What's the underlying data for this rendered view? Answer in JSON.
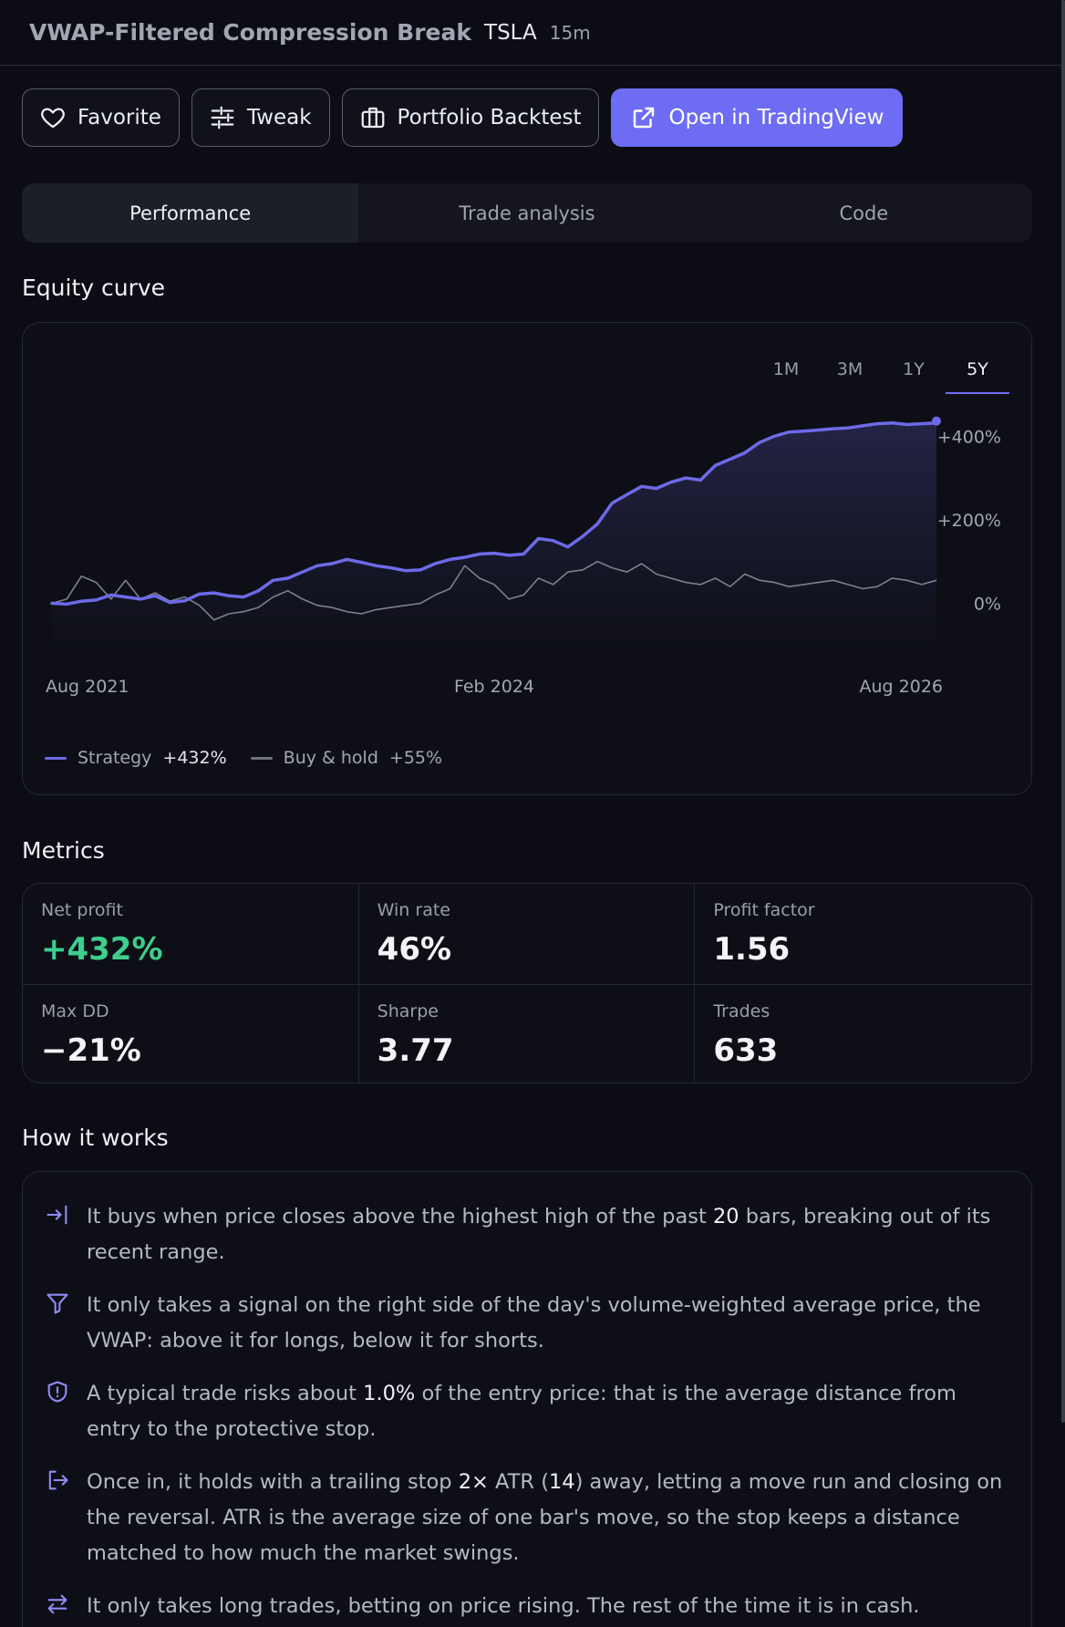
{
  "header": {
    "title": "VWAP-Filtered Compression Break",
    "ticker": "TSLA",
    "timeframe": "15m"
  },
  "actions": {
    "favorite": "Favorite",
    "tweak": "Tweak",
    "portfolio_backtest": "Portfolio Backtest",
    "open_tradingview": "Open in TradingView"
  },
  "tabs": [
    "Performance",
    "Trade analysis",
    "Code"
  ],
  "equity": {
    "section_title": "Equity curve",
    "ranges": [
      "1M",
      "3M",
      "1Y",
      "5Y"
    ],
    "active_range": "5Y",
    "legend": {
      "strategy_label": "Strategy",
      "strategy_value": "+432%",
      "bh_label": "Buy & hold",
      "bh_value": "+55%"
    }
  },
  "chart_data": {
    "type": "line",
    "x_tick_labels": [
      "Aug 2021",
      "Feb 2024",
      "Aug 2026"
    ],
    "y_tick_labels": [
      "+400%",
      "+200%",
      "0%"
    ],
    "ylim": [
      -60,
      440
    ],
    "xlim": [
      0,
      60
    ],
    "grid": false,
    "legend_position": "bottom-left",
    "colors": {
      "strategy": "#6d6ae8",
      "buy_hold": "#7e808c"
    },
    "series": [
      {
        "name": "Strategy",
        "x": [
          0,
          1,
          2,
          3,
          4,
          5,
          6,
          7,
          8,
          9,
          10,
          11,
          12,
          13,
          14,
          15,
          16,
          17,
          18,
          19,
          20,
          21,
          22,
          23,
          24,
          25,
          26,
          27,
          28,
          29,
          30,
          31,
          32,
          33,
          34,
          35,
          36,
          37,
          38,
          39,
          40,
          41,
          42,
          43,
          44,
          45,
          46,
          47,
          48,
          49,
          50,
          51,
          52,
          53,
          54,
          55,
          56,
          57,
          58,
          59,
          60
        ],
        "values": [
          0,
          -2,
          5,
          8,
          20,
          15,
          10,
          18,
          2,
          6,
          22,
          25,
          18,
          15,
          30,
          55,
          60,
          75,
          90,
          95,
          105,
          98,
          90,
          85,
          78,
          80,
          95,
          105,
          110,
          118,
          120,
          115,
          118,
          155,
          150,
          135,
          160,
          190,
          240,
          260,
          280,
          275,
          290,
          300,
          295,
          330,
          345,
          360,
          385,
          400,
          410,
          412,
          415,
          418,
          420,
          425,
          430,
          432,
          428,
          430,
          432
        ]
      },
      {
        "name": "Buy & hold",
        "x": [
          0,
          1,
          2,
          3,
          4,
          5,
          6,
          7,
          8,
          9,
          10,
          11,
          12,
          13,
          14,
          15,
          16,
          17,
          18,
          19,
          20,
          21,
          22,
          23,
          24,
          25,
          26,
          27,
          28,
          29,
          30,
          31,
          32,
          33,
          34,
          35,
          36,
          37,
          38,
          39,
          40,
          41,
          42,
          43,
          44,
          45,
          46,
          47,
          48,
          49,
          50,
          51,
          52,
          53,
          54,
          55,
          56,
          57,
          58,
          59,
          60
        ],
        "values": [
          0,
          10,
          65,
          50,
          10,
          55,
          10,
          25,
          5,
          15,
          -5,
          -40,
          -25,
          -20,
          -10,
          15,
          30,
          10,
          -5,
          -10,
          -20,
          -25,
          -15,
          -10,
          -5,
          0,
          20,
          35,
          90,
          60,
          45,
          10,
          20,
          60,
          45,
          75,
          80,
          100,
          85,
          75,
          95,
          70,
          60,
          50,
          45,
          60,
          40,
          70,
          55,
          50,
          40,
          45,
          50,
          55,
          45,
          35,
          40,
          60,
          55,
          45,
          55
        ]
      }
    ]
  },
  "metrics": {
    "section_title": "Metrics",
    "items": [
      {
        "label": "Net profit",
        "value": "+432%"
      },
      {
        "label": "Win rate",
        "value": "46%"
      },
      {
        "label": "Profit factor",
        "value": "1.56"
      },
      {
        "label": "Max DD",
        "value": "−21%"
      },
      {
        "label": "Sharpe",
        "value": "3.77"
      },
      {
        "label": "Trades",
        "value": "633"
      }
    ]
  },
  "how": {
    "section_title": "How it works",
    "rules": [
      {
        "icon": "enter-arrow-icon",
        "pre": "It buys when price closes above the highest high of the past ",
        "hl": "20",
        "post": " bars, breaking out of its recent range."
      },
      {
        "icon": "filter-icon",
        "pre": "It only takes a signal on the right side of the day's volume-weighted average price, the VWAP: above it for longs, below it for shorts.",
        "hl": "",
        "post": ""
      },
      {
        "icon": "shield-icon",
        "pre": "A typical trade risks about ",
        "hl": "1.0%",
        "post": " of the entry price: that is the average distance from entry to the protective stop."
      },
      {
        "icon": "exit-arrow-icon",
        "pre": "Once in, it holds with a trailing stop ",
        "hl": "2×",
        "mid": " ATR (",
        "hl2": "14",
        "post": ") away, letting a move run and closing on the reversal. ATR is the average size of one bar's move, so the stop keeps a distance matched to how much the market swings."
      },
      {
        "icon": "swap-arrows-icon",
        "pre": "It only takes long trades, betting on price rising. The rest of the time it is in cash.",
        "hl": "",
        "post": ""
      }
    ]
  }
}
